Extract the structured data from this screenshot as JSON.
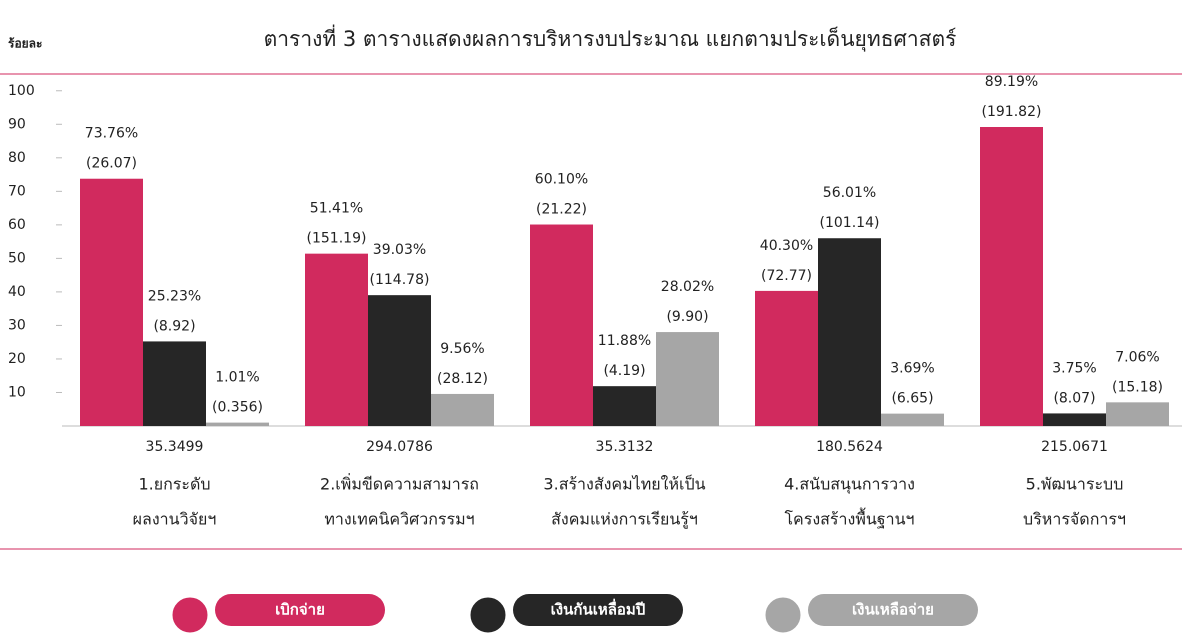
{
  "chart_data": {
    "type": "bar",
    "title": "ตารางที่ 3 ตารางแสดงผลการบริหารงบประมาณ แยกตามประเด็นยุทธศาสตร์",
    "y_label": "ร้อยละ",
    "categories": [
      [
        "1.ยกระดับ",
        "ผลงานวิจัยฯ"
      ],
      [
        "2.เพิ่มขีดความสามารถ",
        "ทางเทคนิควิศวกรรมฯ"
      ],
      [
        "3.สร้างสังคมไทยให้เป็น",
        "สังคมแห่งการเรียนรู้ฯ"
      ],
      [
        "4.สนับสนุนการวาง",
        "โครงสร้างพื้นฐานฯ"
      ],
      [
        "5.พัฒนาระบบ",
        "บริหารจัดการฯ"
      ]
    ],
    "totals": [
      "35.3499",
      "294.0786",
      "35.3132",
      "180.5624",
      "215.0671"
    ],
    "series": [
      {
        "name": "เบิกจ่าย",
        "color": "#d12a5e",
        "values": [
          73.76,
          51.41,
          60.1,
          40.3,
          89.19
        ],
        "value_labels": [
          "73.76%",
          "51.41%",
          "60.10%",
          "40.30%",
          "89.19%"
        ],
        "amount_labels": [
          "(26.07)",
          "(151.19)",
          "(21.22)",
          "(72.77)",
          "(191.82)"
        ]
      },
      {
        "name": "เงินกันเหลื่อมปี",
        "color": "#262626",
        "values": [
          25.23,
          39.03,
          11.88,
          56.01,
          3.75
        ],
        "value_labels": [
          "25.23%",
          "39.03%",
          "11.88%",
          "56.01%",
          "3.75%"
        ],
        "amount_labels": [
          "(8.92)",
          "(114.78)",
          "(4.19)",
          "(101.14)",
          "(8.07)"
        ]
      },
      {
        "name": "เงินเหลือจ่าย",
        "color": "#a6a6a6",
        "values": [
          1.01,
          9.56,
          28.02,
          3.69,
          7.06
        ],
        "value_labels": [
          "1.01%",
          "9.56%",
          "28.02%",
          "3.69%",
          "7.06%"
        ],
        "amount_labels": [
          "(0.356)",
          "(28.12)",
          "(9.90)",
          "(6.65)",
          "(15.18)"
        ]
      }
    ],
    "ylim": [
      0,
      105
    ],
    "yticks": [
      10,
      20,
      30,
      40,
      50,
      60,
      70,
      80,
      90,
      100
    ]
  }
}
